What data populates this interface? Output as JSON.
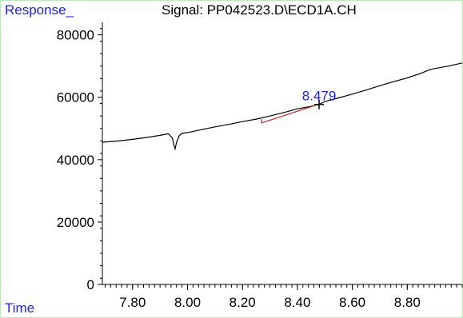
{
  "chart_data": {
    "type": "line",
    "title": "Signal: PP042523.D\\ECD1A.CH",
    "ylabel": "Response_",
    "xlabel": "Time",
    "xlim": [
      7.69,
      9.0
    ],
    "ylim": [
      -500,
      84000
    ],
    "xticks": [
      7.8,
      8.0,
      8.2,
      8.4,
      8.6,
      8.8
    ],
    "xtick_labels": [
      "7.80",
      "8.00",
      "8.20",
      "8.40",
      "8.60",
      "8.80"
    ],
    "yticks": [
      0,
      20000,
      40000,
      60000,
      80000
    ],
    "ytick_labels": [
      "0",
      "20000",
      "40000",
      "60000",
      "80000"
    ],
    "series": [
      {
        "color": "#000000",
        "x": [
          7.69,
          7.75,
          7.8,
          7.85,
          7.9,
          7.93,
          7.945,
          7.95,
          7.955,
          7.96,
          7.97,
          7.98,
          8.0,
          8.05,
          8.1,
          8.15,
          8.2,
          8.25,
          8.3,
          8.35,
          8.4,
          8.45,
          8.479,
          8.5,
          8.55,
          8.6,
          8.65,
          8.7,
          8.75,
          8.8,
          8.85,
          8.88,
          8.9,
          8.95,
          9.0
        ],
        "y": [
          45600,
          46000,
          46500,
          47100,
          47800,
          48300,
          47000,
          44800,
          43500,
          45500,
          47700,
          48400,
          48700,
          49600,
          50500,
          51300,
          52200,
          53000,
          54000,
          55100,
          56300,
          57100,
          57700,
          58600,
          59800,
          61000,
          62300,
          63700,
          65000,
          66200,
          67700,
          68800,
          69200,
          70000,
          71000
        ]
      },
      {
        "color": "#d42020",
        "x": [
          8.27,
          8.27,
          8.479
        ],
        "y": [
          53000,
          51800,
          57800
        ]
      }
    ],
    "annotations": [
      {
        "text": "8.479",
        "x": 8.479,
        "y": 57700,
        "color": "#1d1df0"
      }
    ],
    "grid": false
  }
}
